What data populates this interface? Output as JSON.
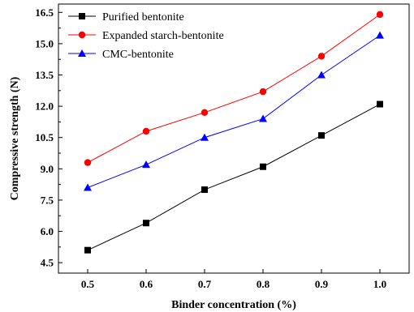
{
  "chart_data": {
    "type": "line",
    "xlabel": "Binder concentration (%)",
    "ylabel": "Compressive strength (N)",
    "x": [
      0.5,
      0.6,
      0.7,
      0.8,
      0.9,
      1.0
    ],
    "x_tick_labels": [
      "0.5",
      "0.6",
      "0.7",
      "0.8",
      "0.9",
      "1.0"
    ],
    "y_ticks": [
      4.5,
      6.0,
      7.5,
      9.0,
      10.5,
      12.0,
      13.5,
      15.0,
      16.5
    ],
    "y_tick_labels": [
      "4.5",
      "6.0",
      "7.5",
      "9.0",
      "10.5",
      "12.0",
      "13.5",
      "15.0",
      "16.5"
    ],
    "xlim": [
      0.45,
      1.05
    ],
    "ylim": [
      4.0,
      16.9
    ],
    "grid": false,
    "legend_position": "top-left",
    "series": [
      {
        "name": "Purified bentonite",
        "color": "#000000",
        "marker": "square",
        "values": [
          5.1,
          6.4,
          8.0,
          9.1,
          10.6,
          12.1
        ]
      },
      {
        "name": "Expanded starch-bentonite",
        "color": "#ff0000",
        "marker": "circle",
        "values": [
          9.3,
          10.8,
          11.7,
          12.7,
          14.4,
          16.4
        ]
      },
      {
        "name": "CMC-bentonite",
        "color": "#0000ff",
        "marker": "triangle",
        "values": [
          8.1,
          9.2,
          10.5,
          11.4,
          13.5,
          15.4
        ]
      }
    ]
  }
}
